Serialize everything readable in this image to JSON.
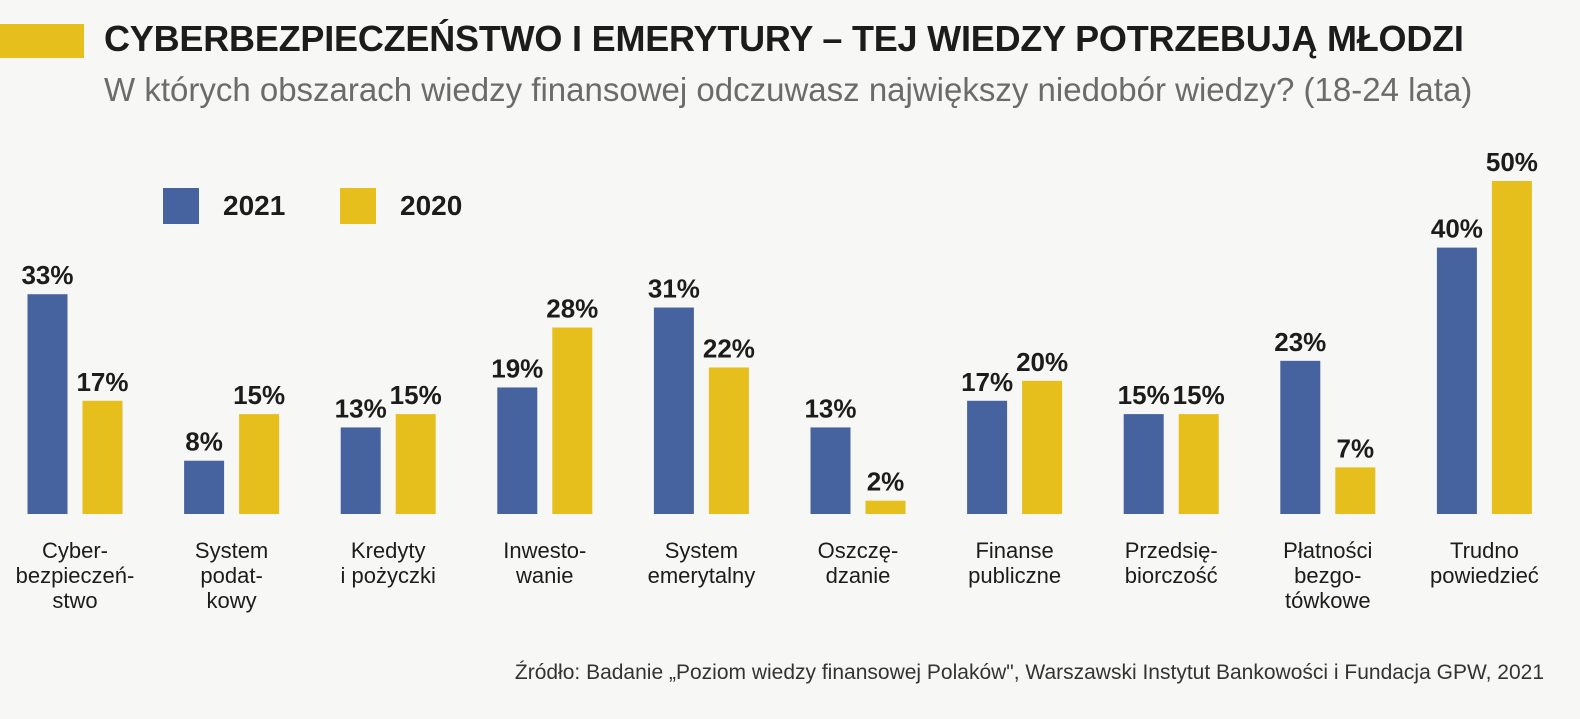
{
  "colors": {
    "accent": "#e6bf1d",
    "series_2021": "#4663a0",
    "series_2020": "#e6bf1d",
    "text": "#1c1c1c",
    "subtitle": "#6b6b6b",
    "background": "#f7f7f5"
  },
  "header": {
    "title": "CYBERBEZPIECZEŃSTWO I EMERYTURY – TEJ WIEDZY POTRZEBUJĄ MŁODZI",
    "subtitle": "W których obszarach wiedzy finansowej odczuwasz największy niedobór wiedzy? (18-24 lata)"
  },
  "legend": [
    {
      "name": "2021",
      "color": "#4663a0"
    },
    {
      "name": "2020",
      "color": "#e6bf1d"
    }
  ],
  "chart_data": {
    "type": "bar",
    "categories": [
      [
        "Cyber-",
        "bezpieczeń-",
        "stwo"
      ],
      [
        "System",
        "podat-",
        "kowy"
      ],
      [
        "Kredyty",
        "i pożyczki"
      ],
      [
        "Inwesto-",
        "wanie"
      ],
      [
        "System",
        "emerytalny"
      ],
      [
        "Oszczę-",
        "dzanie"
      ],
      [
        "Finanse",
        "publiczne"
      ],
      [
        "Przedsię-",
        "biorczość"
      ],
      [
        "Płatności",
        "bezgo-",
        "tówkowe"
      ],
      [
        "Trudno",
        "powiedzieć"
      ]
    ],
    "series": [
      {
        "name": "2021",
        "values": [
          33,
          8,
          13,
          19,
          31,
          13,
          17,
          15,
          23,
          40
        ]
      },
      {
        "name": "2020",
        "values": [
          17,
          15,
          15,
          28,
          22,
          2,
          20,
          15,
          7,
          50
        ]
      }
    ],
    "value_suffix": "%",
    "ylim": [
      0,
      50
    ],
    "legend_position": "top-left",
    "grid": false
  },
  "footer": {
    "source": "Źródło: Badanie „Poziom wiedzy finansowej Polaków\", Warszawski Instytut Bankowości i Fundacja GPW, 2021"
  }
}
